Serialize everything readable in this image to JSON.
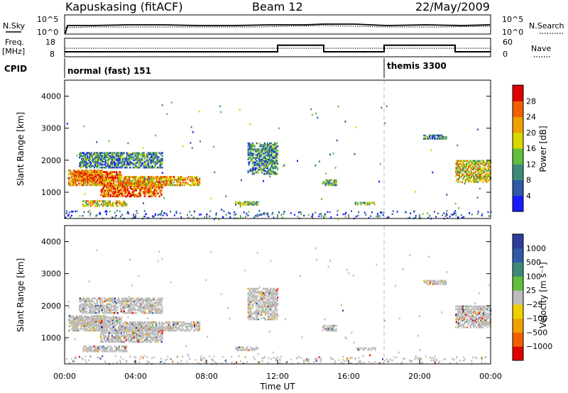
{
  "header": {
    "station": "Kapuskasing (fitACF)",
    "beam": "Beam 12",
    "date": "22/May/2009"
  },
  "top_panels": {
    "nsky_label": "N.Sky",
    "nsearch_label": "N.Search",
    "noise_ticks_left": [
      "10^5",
      "10^0"
    ],
    "noise_ticks_right": [
      "10^5",
      "10^0"
    ],
    "freq_label": "Freq.",
    "freq_unit": "[MHz]",
    "freq_ticks": [
      "18",
      "8"
    ],
    "nave_label": "Nave",
    "nave_ticks": [
      "60",
      "0"
    ],
    "cpid_label": "CPID",
    "cpid_segments": [
      {
        "name": "normal (fast) 151",
        "start_hour": 0,
        "end_hour": 18
      },
      {
        "name": "themis 3300",
        "start_hour": 18,
        "end_hour": 24
      }
    ],
    "nave_steps": [
      {
        "start_hour": 0,
        "end_hour": 12,
        "value": 15
      },
      {
        "start_hour": 12,
        "end_hour": 14.6,
        "value": 38
      },
      {
        "start_hour": 14.6,
        "end_hour": 18,
        "value": 15
      },
      {
        "start_hour": 18,
        "end_hour": 22,
        "value": 38
      },
      {
        "start_hour": 22,
        "end_hour": 24,
        "value": 15
      }
    ]
  },
  "colors": {
    "power_scale": [
      "#1a1aff",
      "#2e5aa8",
      "#3e8a7a",
      "#5fbf3f",
      "#d8d800",
      "#f0a000",
      "#f06000",
      "#e00000"
    ],
    "velocity_scale": [
      "#2e3c9e",
      "#2e5aa8",
      "#3e8a7a",
      "#5fbf3f",
      "#bcbcbc",
      "#f0d000",
      "#f0a000",
      "#f06000",
      "#e00000"
    ]
  },
  "chart_data": [
    {
      "type": "heatmap",
      "title": "",
      "xlabel": "Time UT",
      "ylabel": "Slant Range [km]",
      "xlim": [
        0,
        24
      ],
      "ylim": [
        180,
        4500
      ],
      "x_ticks": [
        "00:00",
        "04:00",
        "08:00",
        "12:00",
        "16:00",
        "20:00",
        "00:00"
      ],
      "y_ticks": [
        "1000",
        "2000",
        "3000",
        "4000"
      ],
      "colorbar": {
        "label": "Power [dB]",
        "ticks": [
          "4",
          "8",
          "12",
          "16",
          "20",
          "24",
          "28"
        ],
        "range": [
          0,
          32
        ]
      },
      "echo_regions": [
        {
          "x_start": 0.2,
          "x_end": 2.3,
          "range_min": 1250,
          "range_max": 1750,
          "power": 20
        },
        {
          "x_start": 0.5,
          "x_end": 3.2,
          "range_min": 1400,
          "range_max": 1700,
          "power": 24
        },
        {
          "x_start": 1.0,
          "x_end": 3.5,
          "range_min": 600,
          "range_max": 800,
          "power": 16
        },
        {
          "x_start": 2.0,
          "x_end": 5.5,
          "range_min": 900,
          "range_max": 1400,
          "power": 22
        },
        {
          "x_start": 3.0,
          "x_end": 7.6,
          "range_min": 1250,
          "range_max": 1550,
          "power": 18
        },
        {
          "x_start": 0.8,
          "x_end": 5.5,
          "range_min": 1800,
          "range_max": 2300,
          "power": 8
        },
        {
          "x_start": 9.6,
          "x_end": 10.9,
          "range_min": 640,
          "range_max": 760,
          "power": 12
        },
        {
          "x_start": 10.3,
          "x_end": 12.0,
          "range_min": 1600,
          "range_max": 2600,
          "power": 8
        },
        {
          "x_start": 14.5,
          "x_end": 15.3,
          "range_min": 1250,
          "range_max": 1450,
          "power": 10
        },
        {
          "x_start": 16.3,
          "x_end": 17.5,
          "range_min": 650,
          "range_max": 750,
          "power": 12
        },
        {
          "x_start": 20.2,
          "x_end": 21.5,
          "range_min": 2700,
          "range_max": 2850,
          "power": 6
        },
        {
          "x_start": 22.0,
          "x_end": 24.0,
          "range_min": 1350,
          "range_max": 2050,
          "power": 14
        }
      ]
    },
    {
      "type": "heatmap",
      "title": "",
      "xlabel": "Time UT",
      "ylabel": "Slant Range [km]",
      "xlim": [
        0,
        24
      ],
      "ylim": [
        180,
        4500
      ],
      "x_ticks": [
        "00:00",
        "04:00",
        "08:00",
        "12:00",
        "16:00",
        "20:00",
        "00:00"
      ],
      "y_ticks": [
        "1000",
        "2000",
        "3000",
        "4000"
      ],
      "colorbar": {
        "label": "Velocity [m s⁻¹]",
        "ticks": [
          "1000",
          "500",
          "100",
          "25",
          "−25",
          "−100",
          "−500",
          "−1000"
        ]
      },
      "dominant_velocity_range": [
        -25,
        25
      ]
    }
  ]
}
